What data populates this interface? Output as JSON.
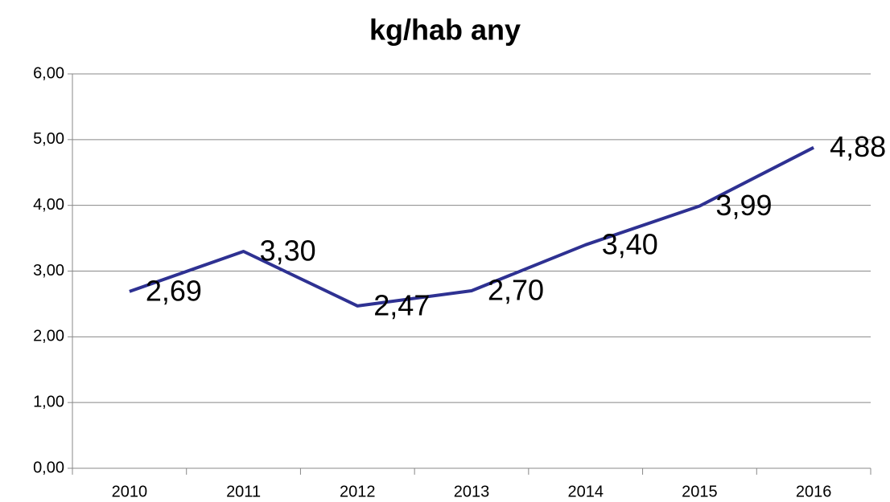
{
  "chart_data": {
    "type": "line",
    "title": "kg/hab any",
    "categories": [
      "2010",
      "2011",
      "2012",
      "2013",
      "2014",
      "2015",
      "2016"
    ],
    "series": [
      {
        "name": "kg/hab any",
        "color": "#2e3192",
        "values": [
          2.69,
          3.3,
          2.47,
          2.7,
          3.4,
          3.99,
          4.88
        ],
        "value_labels": [
          "2,69",
          "3,30",
          "2,47",
          "2,70",
          "3,40",
          "3,99",
          "4,88"
        ]
      }
    ],
    "ylim": [
      0,
      6
    ],
    "yticks": [
      {
        "value": 0,
        "label": "0,00"
      },
      {
        "value": 1,
        "label": "1,00"
      },
      {
        "value": 2,
        "label": "2,00"
      },
      {
        "value": 3,
        "label": "3,00"
      },
      {
        "value": 4,
        "label": "4,00"
      },
      {
        "value": 5,
        "label": "5,00"
      },
      {
        "value": 6,
        "label": "6,00"
      }
    ],
    "grid": true
  }
}
